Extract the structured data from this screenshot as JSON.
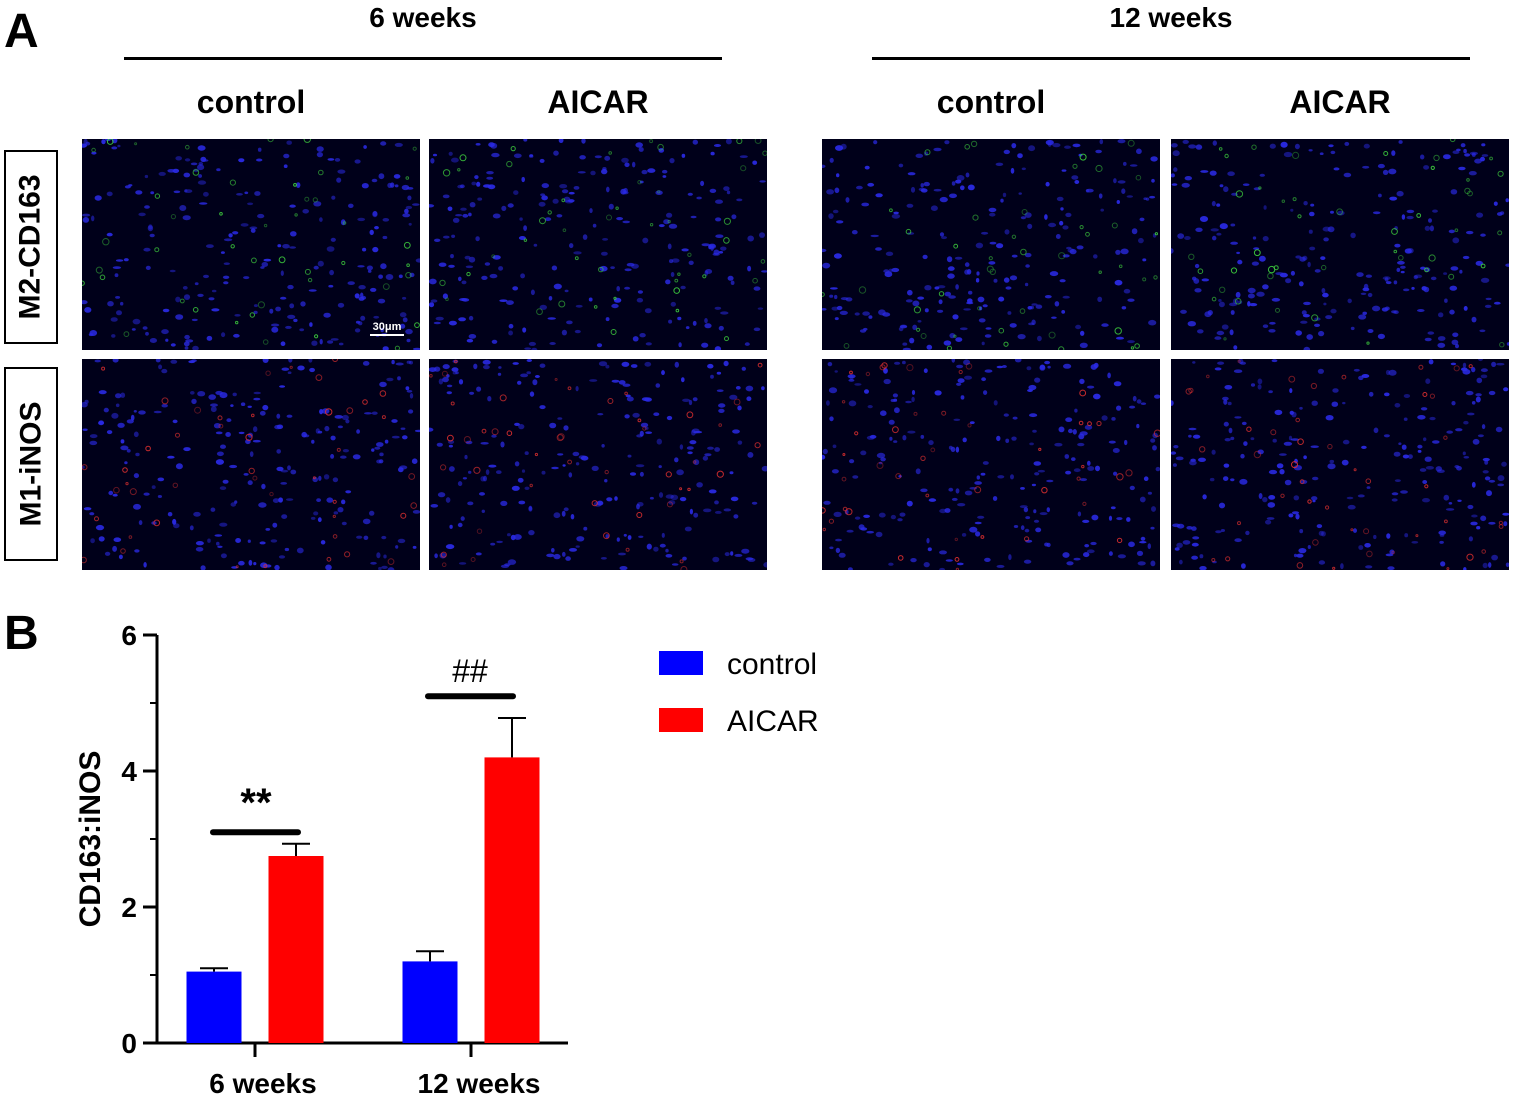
{
  "panel_a": {
    "letter": "A",
    "groups": [
      {
        "title": "6 weeks",
        "columns": [
          "control",
          "AICAR"
        ]
      },
      {
        "title": "12 weeks",
        "columns": [
          "control",
          "AICAR"
        ]
      }
    ],
    "rows": [
      "M2-CD163",
      "M1-iNOS"
    ],
    "scale_bar": "30μm",
    "colors": {
      "nuclei": "#2a2ae6",
      "cd163": "#3fd43f",
      "inos": "#e23030",
      "background": "#00001a"
    }
  },
  "panel_b": {
    "letter": "B",
    "legend": [
      {
        "label": "control",
        "color": "#0000ff"
      },
      {
        "label": "AICAR",
        "color": "#ff0000"
      }
    ],
    "significance": [
      {
        "group": "6 weeks",
        "label": "**"
      },
      {
        "group": "12 weeks",
        "label": "##"
      }
    ]
  },
  "chart_data": {
    "type": "bar",
    "categories": [
      "6 weeks",
      "12 weeks"
    ],
    "series": [
      {
        "name": "control",
        "color": "#0000ff",
        "values": [
          1.05,
          1.2
        ],
        "errors": [
          0.05,
          0.15
        ]
      },
      {
        "name": "AICAR",
        "color": "#ff0000",
        "values": [
          2.75,
          4.2
        ],
        "errors": [
          0.18,
          0.58
        ]
      }
    ],
    "xlabel": "",
    "ylabel": "CD163:iNOS",
    "ylim": [
      0,
      6
    ],
    "yticks": [
      0,
      2,
      4,
      6
    ],
    "legend_position": "top-right",
    "grid": false
  }
}
